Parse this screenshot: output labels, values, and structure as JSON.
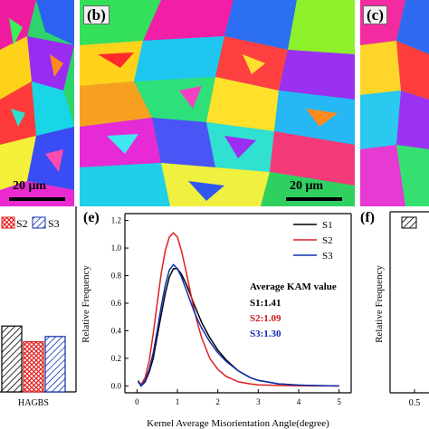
{
  "panels": {
    "b": {
      "label": "(b)",
      "scale": "20 μm"
    },
    "c": {
      "label": "(c)"
    },
    "a": {
      "scale": "20 μm"
    },
    "e": {
      "label": "(e)"
    },
    "f": {
      "label": "(f)"
    }
  },
  "left_chart": {
    "legend": [
      "S2",
      "S3"
    ],
    "category": "HAGBS",
    "colors": {
      "S1": "#000000",
      "S2": "#e02020",
      "S3": "#1030b0"
    },
    "values": {
      "S1": 0.63,
      "S2": 0.48,
      "S3": 0.53
    }
  },
  "chart_data": [
    {
      "type": "line",
      "title": "",
      "xlabel": "Kernel Average Misorientation Angle(degree)",
      "ylabel": "Relative Frequency",
      "xlim": [
        -0.3,
        5.3
      ],
      "ylim": [
        -0.05,
        1.25
      ],
      "xticks": [
        "0",
        "1",
        "2",
        "3",
        "4",
        "5"
      ],
      "yticks": [
        "0.0",
        "0.2",
        "0.4",
        "0.6",
        "0.8",
        "1.0",
        "1.2"
      ],
      "legend_position": "top-right",
      "annotation_title": "Average KAM value",
      "annotations": [
        {
          "text": "S1:1.41",
          "color": "#000000"
        },
        {
          "text": "S2:1.09",
          "color": "#d01818"
        },
        {
          "text": "S3:1.30",
          "color": "#1028b0"
        }
      ],
      "series": [
        {
          "name": "S1",
          "color": "#000000",
          "x": [
            0.03,
            0.1,
            0.2,
            0.3,
            0.4,
            0.5,
            0.6,
            0.7,
            0.8,
            0.9,
            1.0,
            1.1,
            1.2,
            1.3,
            1.4,
            1.5,
            1.6,
            1.8,
            2.0,
            2.2,
            2.5,
            2.8,
            3.0,
            3.5,
            4.0,
            4.5,
            5.0
          ],
          "y": [
            0.03,
            0.0,
            0.03,
            0.1,
            0.2,
            0.36,
            0.52,
            0.67,
            0.79,
            0.85,
            0.85,
            0.81,
            0.75,
            0.68,
            0.6,
            0.53,
            0.46,
            0.35,
            0.26,
            0.19,
            0.11,
            0.06,
            0.04,
            0.015,
            0.006,
            0.002,
            0.0
          ]
        },
        {
          "name": "S2",
          "color": "#e02020",
          "x": [
            0.03,
            0.1,
            0.2,
            0.3,
            0.4,
            0.5,
            0.6,
            0.7,
            0.8,
            0.9,
            1.0,
            1.1,
            1.2,
            1.3,
            1.4,
            1.5,
            1.6,
            1.8,
            2.0,
            2.2,
            2.5,
            2.8,
            3.0,
            3.5,
            4.0,
            4.5,
            5.0
          ],
          "y": [
            0.03,
            0.01,
            0.06,
            0.18,
            0.38,
            0.6,
            0.82,
            0.98,
            1.08,
            1.11,
            1.08,
            0.98,
            0.85,
            0.71,
            0.57,
            0.45,
            0.35,
            0.2,
            0.12,
            0.07,
            0.03,
            0.015,
            0.008,
            0.003,
            0.001,
            0.0,
            0.0
          ]
        },
        {
          "name": "S3",
          "color": "#1030b0",
          "x": [
            0.03,
            0.1,
            0.2,
            0.3,
            0.4,
            0.5,
            0.6,
            0.7,
            0.8,
            0.9,
            1.0,
            1.1,
            1.2,
            1.3,
            1.4,
            1.5,
            1.6,
            1.8,
            2.0,
            2.2,
            2.5,
            2.8,
            3.0,
            3.5,
            4.0,
            4.5,
            5.0
          ],
          "y": [
            0.04,
            0.0,
            0.04,
            0.12,
            0.24,
            0.4,
            0.58,
            0.73,
            0.84,
            0.88,
            0.85,
            0.79,
            0.71,
            0.63,
            0.55,
            0.48,
            0.42,
            0.32,
            0.24,
            0.18,
            0.11,
            0.06,
            0.04,
            0.015,
            0.006,
            0.002,
            0.0
          ]
        }
      ]
    },
    {
      "type": "bar",
      "xlabel": "",
      "ylabel": "Relative Frequency",
      "xticks": [
        "0.5"
      ],
      "legend_visible": true
    }
  ]
}
